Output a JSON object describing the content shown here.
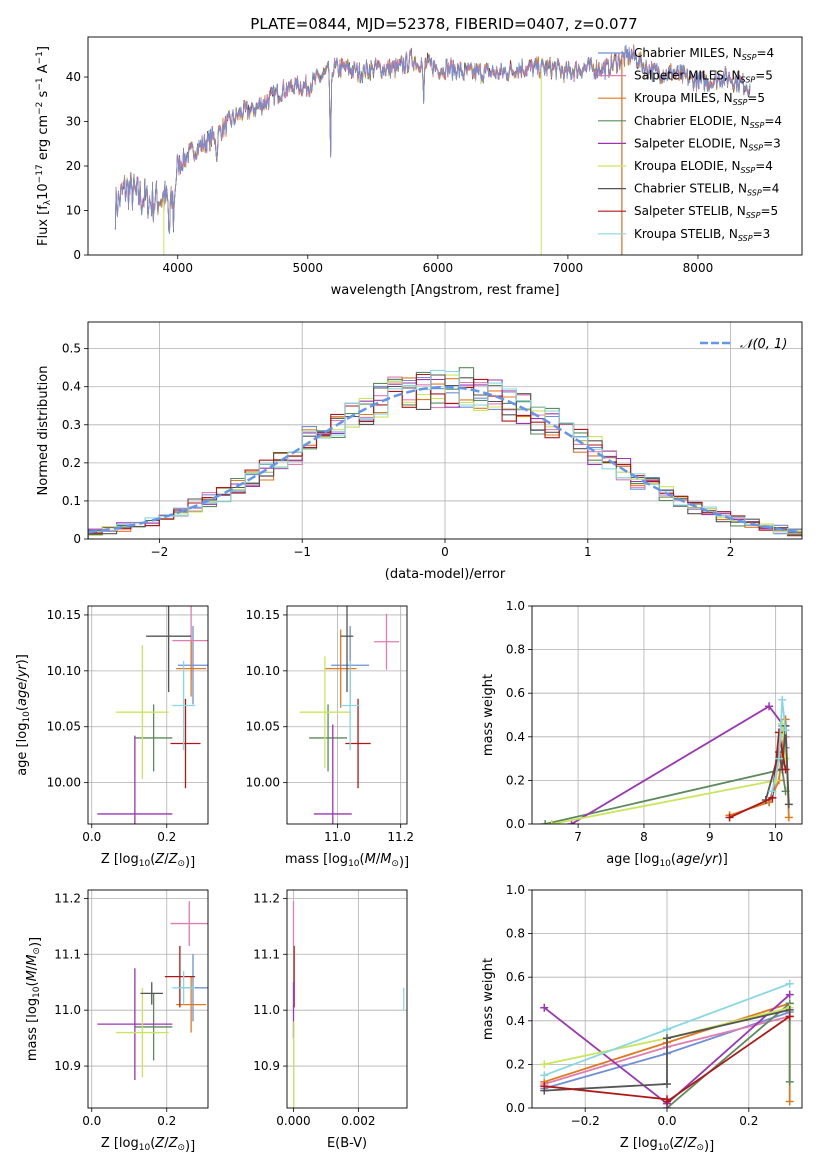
{
  "figure_title": "PLATE=0844, MJD=52378, FIBERID=0407, z=0.077",
  "colors": {
    "Chabrier MILES": "#6f8fd8",
    "Salpeter MILES": "#e07cb0",
    "Kroupa MILES": "#e07a1f",
    "Chabrier ELODIE": "#5c8a5c",
    "Salpeter ELODIE": "#9b35b5",
    "Kroupa ELODIE": "#c9e65a",
    "Chabrier STELIB": "#555555",
    "Salpeter STELIB": "#b01818",
    "Kroupa STELIB": "#87d8e0",
    "normal_curve": "#6495ed"
  },
  "chart_data": [
    {
      "id": "spectrum",
      "type": "line",
      "xlabel": "wavelength [Angstrom, rest frame]",
      "ylabel_parts": [
        "Flux [f",
        "λ",
        "10",
        "−17",
        " erg cm",
        "−2",
        " s",
        "−1",
        " A",
        "−1",
        "]"
      ],
      "xlim": [
        3310,
        8800
      ],
      "ylim": [
        0,
        49
      ],
      "xticks": [
        4000,
        5000,
        6000,
        7000,
        8000
      ],
      "yticks": [
        0,
        10,
        20,
        30,
        40
      ],
      "grid": false,
      "legend_position": "right",
      "legend": [
        {
          "name": "Chabrier MILES",
          "nssp": "4"
        },
        {
          "name": "Salpeter MILES",
          "nssp": "5"
        },
        {
          "name": "Kroupa MILES",
          "nssp": "5"
        },
        {
          "name": "Chabrier ELODIE",
          "nssp": "4"
        },
        {
          "name": "Salpeter ELODIE",
          "nssp": "3"
        },
        {
          "name": "Kroupa ELODIE",
          "nssp": "4"
        },
        {
          "name": "Chabrier STELIB",
          "nssp": "4"
        },
        {
          "name": "Salpeter STELIB",
          "nssp": "5"
        },
        {
          "name": "Kroupa STELIB",
          "nssp": "3"
        }
      ],
      "continuum": {
        "x": [
          3500,
          3600,
          3700,
          3800,
          3900,
          3950,
          4000,
          4100,
          4200,
          4300,
          4400,
          4500,
          4600,
          4700,
          4800,
          4900,
          5000,
          5100,
          5200,
          5300,
          5400,
          5500,
          5600,
          5700,
          5800,
          5900,
          6000,
          6100,
          6200,
          6300,
          6400,
          6500,
          6600,
          6700,
          6800,
          6900,
          7000,
          7100,
          7200,
          7300,
          7400,
          7500,
          7600,
          7700,
          7800,
          7900,
          8000,
          8100,
          8200,
          8300,
          8400
        ],
        "y": [
          10,
          15,
          13,
          12,
          13,
          11,
          20,
          23,
          25,
          27,
          30,
          32,
          33,
          35,
          37,
          38,
          38,
          40,
          42,
          42,
          41,
          42,
          42,
          42,
          44,
          43,
          42,
          42,
          41,
          41,
          41,
          41,
          42,
          42,
          42,
          42,
          41,
          42,
          42,
          42,
          44,
          45,
          42,
          41,
          41,
          40,
          39,
          39,
          40,
          39,
          38
        ]
      },
      "absorption_lines": [
        {
          "x": 3934,
          "depth": 8
        },
        {
          "x": 3969,
          "depth": 7
        },
        {
          "x": 4300,
          "depth": 6
        },
        {
          "x": 5175,
          "depth": 22
        },
        {
          "x": 5890,
          "depth": 10
        }
      ],
      "bad_pixel_drops": [
        {
          "series": "Kroupa ELODIE",
          "x": 3893,
          "to": 0
        },
        {
          "series": "Kroupa ELODIE",
          "x": 6795,
          "to": 0
        },
        {
          "series": "Salpeter STELIB",
          "x": 7415,
          "to": 0
        },
        {
          "series": "Kroupa MILES",
          "x": 7415,
          "to": 0
        }
      ]
    },
    {
      "id": "residual-histogram",
      "type": "histogram",
      "xlabel": "(data-model)/error",
      "ylabel": "Normed distribution",
      "xlim": [
        -2.5,
        2.5
      ],
      "ylim": [
        0,
        0.57
      ],
      "xticks": [
        -2,
        -1,
        0,
        1,
        2
      ],
      "xtick_labels": [
        "−2",
        "−1",
        "0",
        "1",
        "2"
      ],
      "yticks": [
        0.0,
        0.1,
        0.2,
        0.3,
        0.4,
        0.5
      ],
      "grid": true,
      "bin_width": 0.1,
      "bin_start": -2.5,
      "curve": {
        "name": "N(0,1)",
        "label": "𝒩(0, 1)",
        "mean": 0,
        "sigma": 1,
        "style": "dashed"
      },
      "legend_position": "top-right"
    },
    {
      "id": "age-vs-Z",
      "type": "errorbar",
      "xlabel": "Z [log10(Z/Z⊙)]",
      "ylabel": "age  [log10(age/yr)]",
      "xlim": [
        -0.01,
        0.31
      ],
      "ylim": [
        9.963,
        10.158
      ],
      "xticks": [
        0.0,
        0.2
      ],
      "xtick_labels": [
        "0.0",
        "0.2"
      ],
      "yticks": [
        10.0,
        10.05,
        10.1,
        10.15
      ],
      "ytick_labels": [
        "10.00",
        "10.05",
        "10.10",
        "10.15"
      ],
      "grid": true,
      "points": [
        {
          "series": "Chabrier MILES",
          "x": 0.27,
          "xerr": 0.04,
          "y": 10.105,
          "yerr": 0.035
        },
        {
          "series": "Salpeter MILES",
          "x": 0.265,
          "xerr": 0.05,
          "y": 10.127,
          "yerr": 0.035
        },
        {
          "series": "Kroupa MILES",
          "x": 0.265,
          "xerr": 0.04,
          "y": 10.102,
          "yerr": 0.025
        },
        {
          "series": "Chabrier ELODIE",
          "x": 0.165,
          "xerr": 0.05,
          "y": 10.04,
          "yerr": 0.03
        },
        {
          "series": "Salpeter ELODIE",
          "x": 0.115,
          "xerr": 0.1,
          "y": 9.972,
          "yerr": 0.07
        },
        {
          "series": "Kroupa ELODIE",
          "x": 0.135,
          "xerr": 0.07,
          "y": 10.063,
          "yerr": 0.06
        },
        {
          "series": "Chabrier STELIB",
          "x": 0.205,
          "xerr": 0.06,
          "y": 10.131,
          "yerr": 0.05
        },
        {
          "series": "Salpeter STELIB",
          "x": 0.25,
          "xerr": 0.04,
          "y": 10.035,
          "yerr": 0.04
        },
        {
          "series": "Kroupa STELIB",
          "x": 0.245,
          "xerr": 0.03,
          "y": 10.069,
          "yerr": 0.04
        }
      ]
    },
    {
      "id": "age-vs-mass",
      "type": "errorbar",
      "xlabel": "mass [log10(M/M⊙)]",
      "xlim": [
        10.84,
        11.22
      ],
      "ylim": [
        9.963,
        10.158
      ],
      "xticks": [
        11.0,
        11.2
      ],
      "xtick_labels": [
        "11.0",
        "11.2"
      ],
      "yticks": [
        10.0,
        10.05,
        10.1,
        10.15
      ],
      "ytick_labels": [
        "10.00",
        "10.05",
        "10.10",
        "10.15"
      ],
      "grid": true,
      "points": [
        {
          "series": "Chabrier MILES",
          "x": 11.04,
          "xerr": 0.06,
          "y": 10.105,
          "yerr": 0.035
        },
        {
          "series": "Salpeter MILES",
          "x": 11.155,
          "xerr": 0.04,
          "y": 10.126,
          "yerr": 0.025
        },
        {
          "series": "Kroupa MILES",
          "x": 11.01,
          "xerr": 0.05,
          "y": 10.102,
          "yerr": 0.035
        },
        {
          "series": "Chabrier ELODIE",
          "x": 10.97,
          "xerr": 0.06,
          "y": 10.04,
          "yerr": 0.03
        },
        {
          "series": "Salpeter ELODIE",
          "x": 10.985,
          "xerr": 0.06,
          "y": 9.972,
          "yerr": 0.08
        },
        {
          "series": "Kroupa ELODIE",
          "x": 10.96,
          "xerr": 0.08,
          "y": 10.063,
          "yerr": 0.05
        },
        {
          "series": "Chabrier STELIB",
          "x": 11.03,
          "xerr": 0.02,
          "y": 10.131,
          "yerr": 0.05
        },
        {
          "series": "Salpeter STELIB",
          "x": 11.065,
          "xerr": 0.04,
          "y": 10.035,
          "yerr": 0.04
        },
        {
          "series": "Kroupa STELIB",
          "x": 11.04,
          "xerr": 0.03,
          "y": 10.069,
          "yerr": 0.04
        }
      ]
    },
    {
      "id": "mass-weight-vs-age",
      "type": "line",
      "xlabel": "age  [log10(age/yr)]",
      "ylabel": "mass weight",
      "xlim": [
        6.3,
        10.4
      ],
      "ylim": [
        0,
        1.0
      ],
      "xticks": [
        7,
        8,
        9,
        10
      ],
      "xtick_labels": [
        "7",
        "8",
        "9",
        "10"
      ],
      "yticks": [
        0.0,
        0.2,
        0.4,
        0.6,
        0.8,
        1.0
      ],
      "ytick_labels": [
        "0.0",
        "0.2",
        "0.4",
        "0.6",
        "0.8",
        "1.0"
      ],
      "grid": true,
      "series": [
        {
          "name": "Chabrier MILES",
          "x": [
            9.9,
            10.0,
            10.1,
            10.15
          ],
          "y": [
            0.1,
            0.2,
            0.45,
            0.35
          ]
        },
        {
          "name": "Salpeter MILES",
          "x": [
            9.95,
            10.05,
            10.15
          ],
          "y": [
            0.12,
            0.3,
            0.4
          ]
        },
        {
          "name": "Kroupa MILES",
          "x": [
            9.3,
            9.9,
            10.05,
            10.15,
            10.2
          ],
          "y": [
            0.04,
            0.1,
            0.2,
            0.48,
            0.03
          ]
        },
        {
          "name": "Chabrier ELODIE",
          "x": [
            6.5,
            10.1,
            10.15
          ],
          "y": [
            0.0,
            0.25,
            0.15
          ]
        },
        {
          "name": "Salpeter ELODIE",
          "x": [
            6.9,
            9.9,
            10.1
          ],
          "y": [
            0.0,
            0.54,
            0.46
          ]
        },
        {
          "name": "Kroupa ELODIE",
          "x": [
            6.6,
            10.0,
            10.1,
            10.15
          ],
          "y": [
            0.0,
            0.2,
            0.46,
            0.3
          ]
        },
        {
          "name": "Chabrier STELIB",
          "x": [
            9.85,
            10.05,
            10.1,
            10.15,
            10.2
          ],
          "y": [
            0.11,
            0.33,
            0.25,
            0.45,
            0.09
          ]
        },
        {
          "name": "Salpeter STELIB",
          "x": [
            9.3,
            9.95,
            10.05,
            10.15
          ],
          "y": [
            0.03,
            0.12,
            0.42,
            0.25
          ]
        },
        {
          "name": "Kroupa STELIB",
          "x": [
            9.95,
            10.05,
            10.1,
            10.15
          ],
          "y": [
            0.15,
            0.3,
            0.57,
            0.43
          ]
        }
      ]
    },
    {
      "id": "mass-vs-Z",
      "type": "errorbar",
      "xlabel": "Z [log10(Z/Z⊙)]",
      "ylabel": "mass [log10(M/M⊙)]",
      "xlim": [
        -0.01,
        0.31
      ],
      "ylim": [
        10.825,
        11.215
      ],
      "xticks": [
        0.0,
        0.2
      ],
      "xtick_labels": [
        "0.0",
        "0.2"
      ],
      "yticks": [
        10.9,
        11.0,
        11.1,
        11.2
      ],
      "ytick_labels": [
        "10.9",
        "11.0",
        "11.1",
        "11.2"
      ],
      "grid": true,
      "points": [
        {
          "series": "Chabrier MILES",
          "x": 0.27,
          "xerr": 0.04,
          "y": 11.04,
          "yerr": 0.06
        },
        {
          "series": "Salpeter MILES",
          "x": 0.26,
          "xerr": 0.05,
          "y": 11.155,
          "yerr": 0.04
        },
        {
          "series": "Kroupa MILES",
          "x": 0.265,
          "xerr": 0.04,
          "y": 11.01,
          "yerr": 0.05
        },
        {
          "series": "Chabrier ELODIE",
          "x": 0.165,
          "xerr": 0.05,
          "y": 10.97,
          "yerr": 0.06
        },
        {
          "series": "Salpeter ELODIE",
          "x": 0.115,
          "xerr": 0.1,
          "y": 10.975,
          "yerr": 0.1
        },
        {
          "series": "Kroupa ELODIE",
          "x": 0.135,
          "xerr": 0.07,
          "y": 10.96,
          "yerr": 0.08
        },
        {
          "series": "Chabrier STELIB",
          "x": 0.16,
          "xerr": 0.03,
          "y": 11.03,
          "yerr": 0.02
        },
        {
          "series": "Salpeter STELIB",
          "x": 0.235,
          "xerr": 0.04,
          "y": 11.06,
          "yerr": 0.055
        },
        {
          "series": "Kroupa STELIB",
          "x": 0.245,
          "xerr": 0.03,
          "y": 11.04,
          "yerr": 0.03
        }
      ]
    },
    {
      "id": "mass-vs-ebv",
      "type": "errorbar",
      "xlabel": "E(B-V)",
      "xlim": [
        -0.0002,
        0.0035
      ],
      "ylim": [
        10.825,
        11.215
      ],
      "xticks": [
        0.0,
        0.002
      ],
      "xtick_labels": [
        "0.000",
        "0.002"
      ],
      "yticks": [
        10.9,
        11.0,
        11.1,
        11.2
      ],
      "ytick_labels": [
        "10.9",
        "11.0",
        "11.1",
        "11.2"
      ],
      "grid": true,
      "points": [
        {
          "series": "Salpeter MILES",
          "x": 0.0,
          "xerr": 1e-05,
          "y": 11.155,
          "yerr": 0.04
        },
        {
          "series": "Salpeter STELIB",
          "x": 2e-05,
          "xerr": 1e-05,
          "y": 11.06,
          "yerr": 0.055
        },
        {
          "series": "Salpeter ELODIE",
          "x": 0.0,
          "xerr": 1e-05,
          "y": 11.0,
          "yerr": 0.05
        },
        {
          "series": "Kroupa ELODIE",
          "x": 1e-05,
          "xerr": 1e-05,
          "y": 10.9,
          "yerr": 0.08
        },
        {
          "series": "Kroupa STELIB",
          "x": 0.0034,
          "xerr": 1e-05,
          "y": 11.02,
          "yerr": 0.02
        }
      ]
    },
    {
      "id": "mass-weight-vs-Z",
      "type": "line",
      "xlabel": "Z [log10(Z/Z⊙)]",
      "ylabel": "mass weight",
      "xlim": [
        -0.33,
        0.33
      ],
      "ylim": [
        0,
        1.0
      ],
      "xticks": [
        -0.2,
        0.0,
        0.2
      ],
      "xtick_labels": [
        "−0.2",
        "0.0",
        "0.2"
      ],
      "yticks": [
        0.0,
        0.2,
        0.4,
        0.6,
        0.8,
        1.0
      ],
      "ytick_labels": [
        "0.0",
        "0.2",
        "0.4",
        "0.6",
        "0.8",
        "1.0"
      ],
      "grid": true,
      "series": [
        {
          "name": "Chabrier MILES",
          "x": [
            -0.3,
            0.0,
            0.3
          ],
          "y": [
            0.09,
            0.25,
            0.44
          ]
        },
        {
          "name": "Salpeter MILES",
          "x": [
            -0.3,
            0.0,
            0.3
          ],
          "y": [
            0.11,
            0.28,
            0.42
          ]
        },
        {
          "name": "Kroupa MILES",
          "x": [
            -0.3,
            0.0,
            0.3,
            0.3
          ],
          "y": [
            0.12,
            0.3,
            0.48,
            0.03
          ]
        },
        {
          "name": "Chabrier ELODIE",
          "x": [
            0.0,
            0.3,
            0.3
          ],
          "y": [
            0.0,
            0.48,
            0.12
          ]
        },
        {
          "name": "Salpeter ELODIE",
          "x": [
            -0.3,
            0.0,
            0.3
          ],
          "y": [
            0.46,
            0.02,
            0.52
          ]
        },
        {
          "name": "Kroupa ELODIE",
          "x": [
            -0.3,
            0.0,
            0.3
          ],
          "y": [
            0.2,
            0.32,
            0.46
          ]
        },
        {
          "name": "Chabrier STELIB",
          "x": [
            -0.3,
            0.0,
            0.0,
            0.3
          ],
          "y": [
            0.08,
            0.11,
            0.32,
            0.45
          ]
        },
        {
          "name": "Salpeter STELIB",
          "x": [
            -0.3,
            0.0,
            0.0,
            0.3
          ],
          "y": [
            0.1,
            0.04,
            0.03,
            0.42
          ]
        },
        {
          "name": "Kroupa STELIB",
          "x": [
            -0.3,
            0.0,
            0.3
          ],
          "y": [
            0.15,
            0.36,
            0.57
          ]
        }
      ]
    }
  ]
}
